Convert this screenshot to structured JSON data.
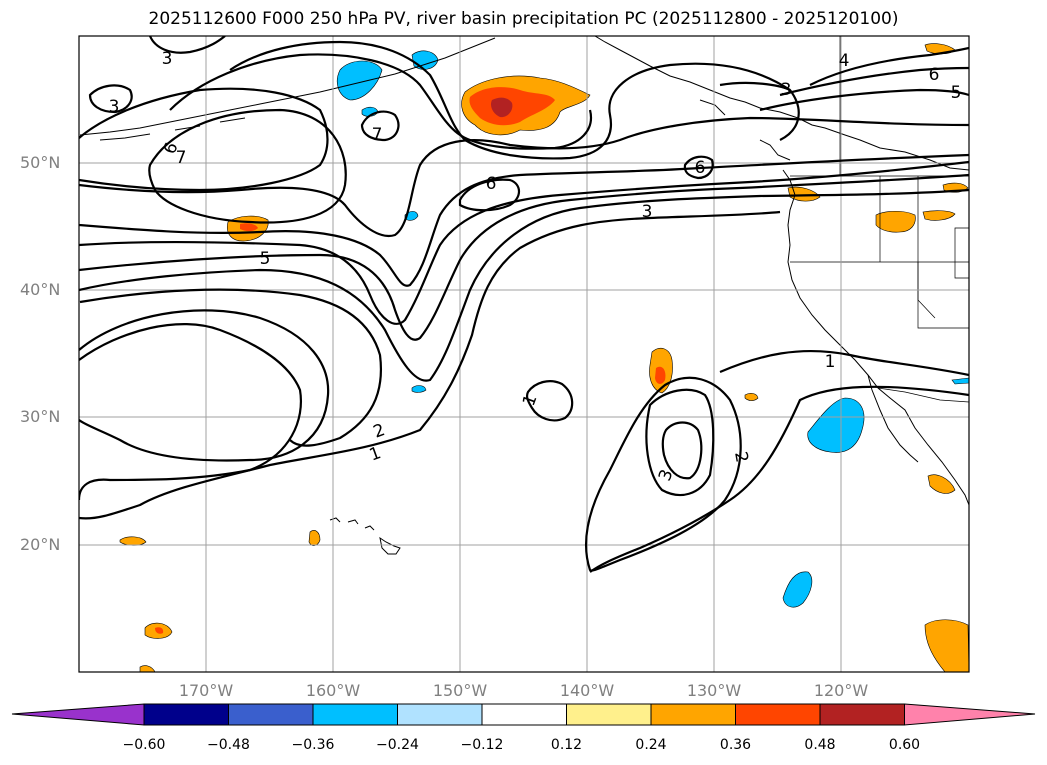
{
  "title": "2025112600 F000 250 hPa PV, river basin precipitation PC (2025112800 - 2025120100)",
  "map": {
    "lat_labels": [
      "50°N",
      "40°N",
      "30°N",
      "20°N"
    ],
    "lon_labels": [
      "170°W",
      "160°W",
      "150°W",
      "140°W",
      "130°W",
      "120°W"
    ],
    "extent": {
      "lon_min": -180,
      "lon_max": -110,
      "lat_min": 10,
      "lat_max": 60
    }
  },
  "contour_labels": [
    "3",
    "3",
    "6",
    "7",
    "7",
    "5",
    "6",
    "3",
    "6",
    "1",
    "2",
    "1",
    "3",
    "2",
    "1",
    "4",
    "6",
    "5",
    "3"
  ],
  "colorbar": {
    "ticks": [
      "−0.60",
      "−0.48",
      "−0.36",
      "−0.24",
      "−0.12",
      "0.12",
      "0.24",
      "0.36",
      "0.48",
      "0.60"
    ],
    "colors": {
      "under": "#9932cc",
      "bins": [
        "#00008b",
        "#3a5fcd",
        "#00bfff",
        "#b0e2ff",
        "#ffffff",
        "#fff08c",
        "#ffa500",
        "#ff4500",
        "#b22222",
        "#ff82ab"
      ],
      "over": "#ff82ab"
    }
  },
  "precip_colors": {
    "orange": "#ffa500",
    "red": "#ff4500",
    "darkred": "#b22222",
    "blue": "#00bfff",
    "lightblue": "#b0e2ff"
  }
}
